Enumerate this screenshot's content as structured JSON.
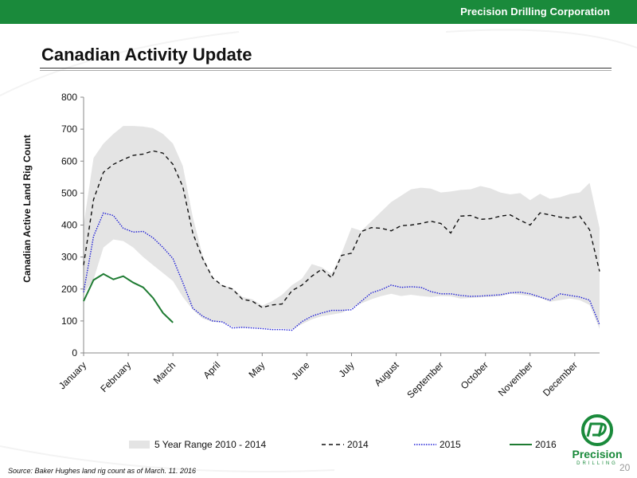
{
  "header": {
    "company": "Precision Drilling Corporation"
  },
  "page": {
    "title": "Canadian Activity Update",
    "number": "20"
  },
  "footer": {
    "source": "Source: Baker Hughes land rig count as of March. 11. 2016"
  },
  "logo": {
    "name": "Precision",
    "sub": "DRILLING"
  },
  "colors": {
    "brand": "#1a8a3b",
    "range": "#e4e4e4",
    "s2014": "#111111",
    "s2015": "#1f1fd6",
    "s2016": "#1e7b32"
  },
  "chart_data": {
    "type": "line",
    "ylabel": "Canadian Active Land Rig Count",
    "xlabel": "",
    "ylim": [
      0,
      800
    ],
    "yticks": [
      0,
      100,
      200,
      300,
      400,
      500,
      600,
      700,
      800
    ],
    "grid": false,
    "legend_position": "bottom",
    "x_domain": [
      1,
      53
    ],
    "months": [
      {
        "label": "January",
        "week": 1
      },
      {
        "label": "February",
        "week": 5.5
      },
      {
        "label": "March",
        "week": 10
      },
      {
        "label": "April",
        "week": 14.5
      },
      {
        "label": "May",
        "week": 19
      },
      {
        "label": "June",
        "week": 23.5
      },
      {
        "label": "July",
        "week": 28
      },
      {
        "label": "August",
        "week": 32.5
      },
      {
        "label": "September",
        "week": 37
      },
      {
        "label": "October",
        "week": 41.5
      },
      {
        "label": "November",
        "week": 46
      },
      {
        "label": "December",
        "week": 50.5
      }
    ],
    "range": {
      "name": "5 Year Range 2010 - 2014",
      "weeks": [
        1,
        2,
        3,
        4,
        5,
        6,
        7,
        8,
        9,
        10,
        11,
        12,
        13,
        14,
        15,
        16,
        17,
        18,
        19,
        20,
        21,
        22,
        23,
        24,
        25,
        26,
        27,
        28,
        29,
        30,
        31,
        32,
        33,
        34,
        35,
        36,
        37,
        38,
        39,
        40,
        41,
        42,
        43,
        44,
        45,
        46,
        47,
        48,
        49,
        50,
        51,
        52,
        53
      ],
      "high": [
        400,
        610,
        655,
        685,
        710,
        710,
        708,
        703,
        685,
        655,
        585,
        425,
        305,
        232,
        212,
        202,
        175,
        168,
        148,
        162,
        182,
        212,
        232,
        278,
        268,
        248,
        312,
        392,
        382,
        412,
        442,
        472,
        492,
        512,
        517,
        514,
        502,
        505,
        510,
        512,
        522,
        515,
        502,
        496,
        500,
        478,
        498,
        482,
        487,
        497,
        502,
        532,
        390
      ],
      "low": [
        185,
        230,
        330,
        355,
        350,
        330,
        300,
        275,
        250,
        225,
        175,
        135,
        108,
        97,
        96,
        82,
        80,
        80,
        78,
        76,
        76,
        74,
        90,
        105,
        115,
        120,
        125,
        140,
        155,
        168,
        178,
        185,
        178,
        182,
        178,
        175,
        178,
        177,
        170,
        172,
        174,
        175,
        177,
        185,
        182,
        178,
        172,
        160,
        165,
        170,
        165,
        150,
        75
      ]
    },
    "series": [
      {
        "name": "2014",
        "weeks": [
          1,
          2,
          3,
          4,
          5,
          6,
          7,
          8,
          9,
          10,
          11,
          12,
          13,
          14,
          15,
          16,
          17,
          18,
          19,
          20,
          21,
          22,
          23,
          24,
          25,
          26,
          27,
          28,
          29,
          30,
          31,
          32,
          33,
          34,
          35,
          36,
          37,
          38,
          39,
          40,
          41,
          42,
          43,
          44,
          45,
          46,
          47,
          48,
          49,
          50,
          51,
          52,
          53
        ],
        "values": [
          275,
          480,
          565,
          590,
          605,
          618,
          622,
          632,
          625,
          590,
          520,
          375,
          295,
          235,
          210,
          200,
          168,
          162,
          142,
          150,
          153,
          195,
          212,
          240,
          262,
          235,
          305,
          312,
          380,
          392,
          390,
          382,
          398,
          400,
          405,
          412,
          405,
          375,
          428,
          430,
          418,
          420,
          428,
          432,
          415,
          400,
          438,
          432,
          425,
          422,
          428,
          385,
          255
        ]
      },
      {
        "name": "2015",
        "weeks": [
          1,
          2,
          3,
          4,
          5,
          6,
          7,
          8,
          9,
          10,
          11,
          12,
          13,
          14,
          15,
          16,
          17,
          18,
          19,
          20,
          21,
          22,
          23,
          24,
          25,
          26,
          27,
          28,
          29,
          30,
          31,
          32,
          33,
          34,
          35,
          36,
          37,
          38,
          39,
          40,
          41,
          42,
          43,
          44,
          45,
          46,
          47,
          48,
          49,
          50,
          51,
          52,
          53
        ],
        "values": [
          190,
          365,
          438,
          430,
          390,
          378,
          380,
          360,
          330,
          295,
          220,
          140,
          115,
          100,
          97,
          78,
          80,
          78,
          76,
          73,
          73,
          71,
          98,
          115,
          125,
          133,
          133,
          135,
          162,
          188,
          198,
          212,
          205,
          207,
          205,
          192,
          185,
          185,
          180,
          177,
          178,
          180,
          182,
          188,
          190,
          185,
          175,
          165,
          185,
          180,
          175,
          165,
          88
        ]
      },
      {
        "name": "2016",
        "weeks": [
          1,
          2,
          3,
          4,
          5,
          6,
          7,
          8,
          9,
          10,
          11
        ],
        "values": [
          162,
          228,
          247,
          230,
          240,
          220,
          205,
          172,
          125,
          95,
          null
        ]
      }
    ]
  }
}
